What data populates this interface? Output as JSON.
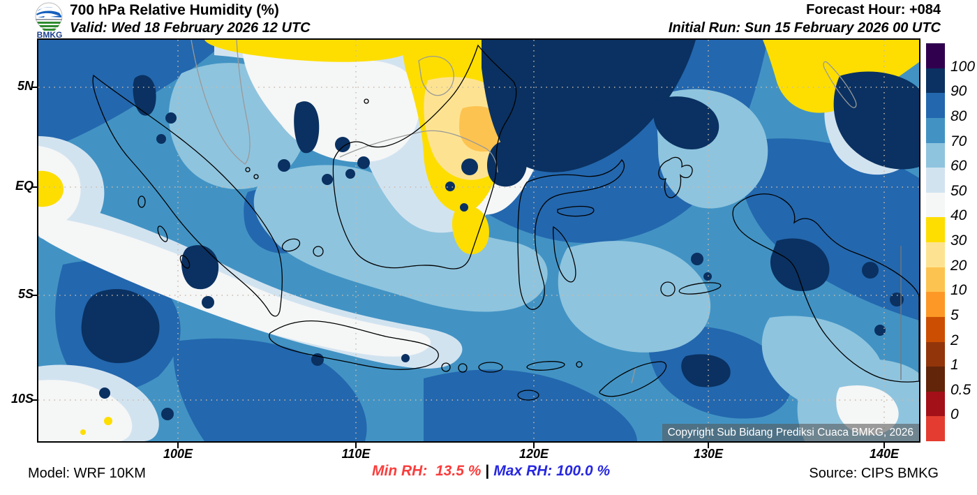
{
  "header": {
    "logo_text": "BMKG",
    "title": "700 hPa Relative Humidity (%)",
    "valid": "Valid: Wed 18 February 2026 12 UTC",
    "forecast_hour": "Forecast Hour: +084",
    "initial_run": "Initial Run: Sun 15 February 2026 00 UTC"
  },
  "map": {
    "y_ticks": [
      "5N",
      "EQ",
      "5S",
      "10S"
    ],
    "x_ticks": [
      "100E",
      "110E",
      "120E",
      "130E",
      "140E"
    ],
    "copyright": "Copyright Sub Bidang Prediksi Cuaca BMKG, 2026"
  },
  "legend": {
    "labels": [
      "100",
      "90",
      "80",
      "70",
      "60",
      "50",
      "40",
      "30",
      "20",
      "10",
      "5",
      "2",
      "1",
      "0.5",
      "0"
    ],
    "colors": [
      "#30004E",
      "#0A3161",
      "#2367AE",
      "#4293C4",
      "#8FC4DE",
      "#D2E3F0",
      "#F5F6F6",
      "#FDDE00",
      "#FDE391",
      "#FDC350",
      "#FD9827",
      "#CC4E02",
      "#93350A",
      "#62250A",
      "#A31018",
      "#E43C30"
    ]
  },
  "footer": {
    "model": "Model: WRF 10KM",
    "min_rh_label": "Min RH:",
    "min_rh_value": "13.5 %",
    "separator": "|",
    "max_rh_label": "Max RH:",
    "max_rh_value": "100.0 %",
    "source": "Source: CIPS BMKG"
  },
  "colors": {
    "min_rh_text": "#FA3D3C",
    "max_rh_text": "#2727DF"
  }
}
